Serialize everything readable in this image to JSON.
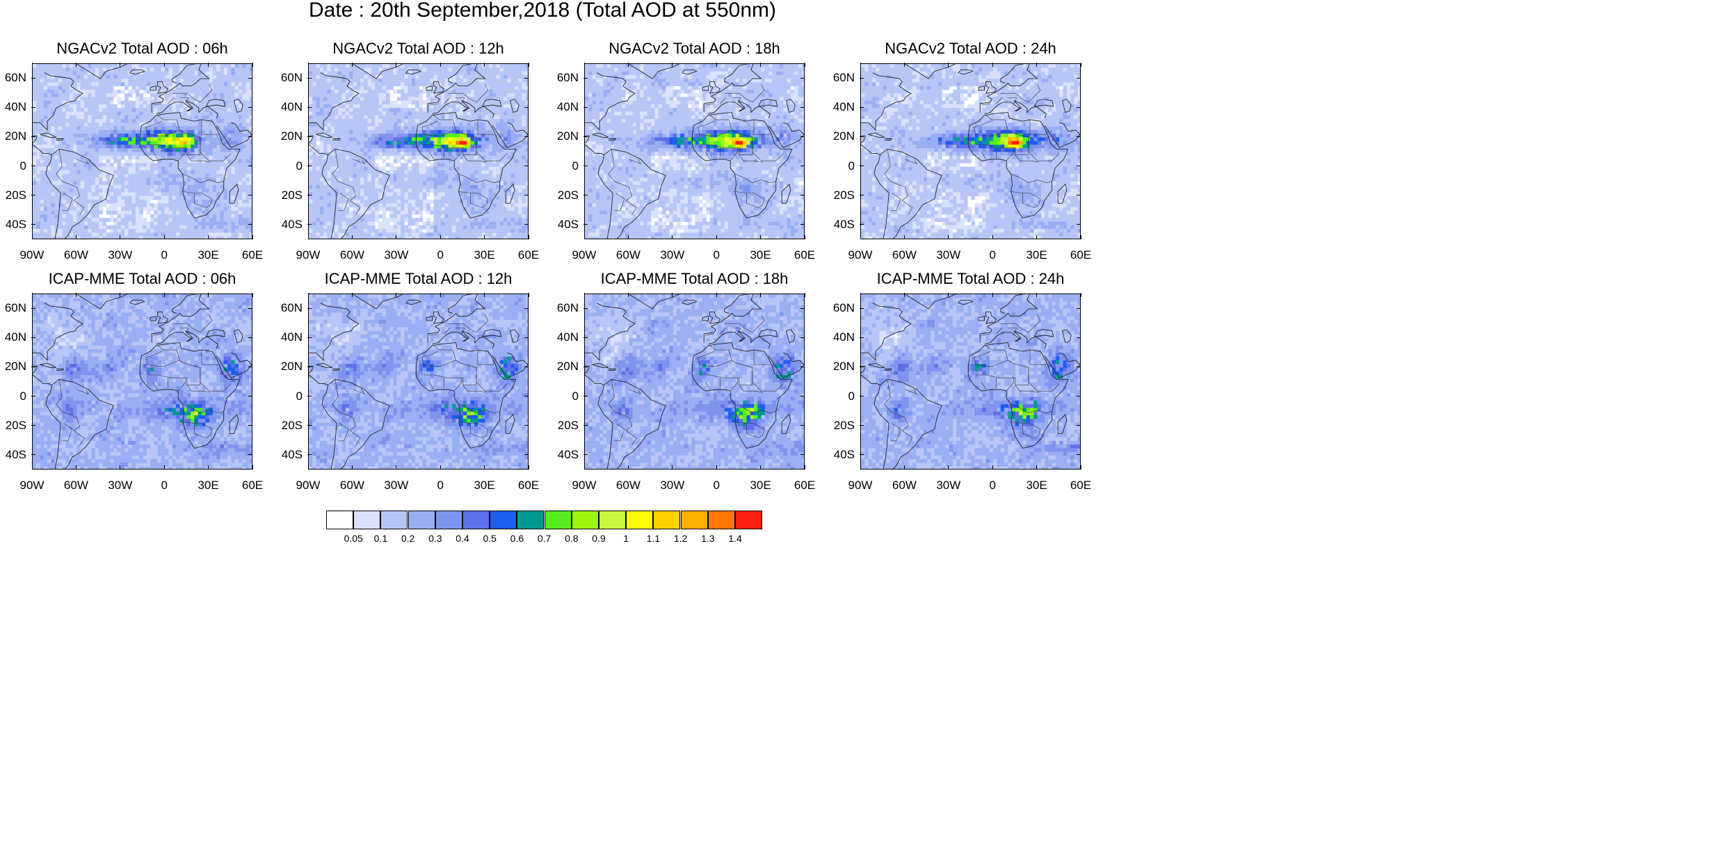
{
  "title": "Date : 20th September,2018 (Total AOD at 550nm)",
  "panels": [
    {
      "title": "NGACv2 Total AOD : 06h",
      "model": "ngac",
      "phase": 0
    },
    {
      "title": "NGACv2 Total AOD : 12h",
      "model": "ngac",
      "phase": 1
    },
    {
      "title": "NGACv2 Total AOD : 18h",
      "model": "ngac",
      "phase": 2
    },
    {
      "title": "NGACv2 Total AOD : 24h",
      "model": "ngac",
      "phase": 3
    },
    {
      "title": "ICAP-MME Total AOD : 06h",
      "model": "icap",
      "phase": 0
    },
    {
      "title": "ICAP-MME Total AOD : 12h",
      "model": "icap",
      "phase": 1
    },
    {
      "title": "ICAP-MME Total AOD : 18h",
      "model": "icap",
      "phase": 2
    },
    {
      "title": "ICAP-MME Total AOD : 24h",
      "model": "icap",
      "phase": 3
    }
  ],
  "lat_labels": [
    "60N",
    "40N",
    "20N",
    "0",
    "20S",
    "40S"
  ],
  "lon_labels": [
    "90W",
    "60W",
    "30W",
    "0",
    "30E",
    "60E"
  ],
  "colorbar": {
    "labels": [
      "0.05",
      "0.1",
      "0.2",
      "0.3",
      "0.4",
      "0.5",
      "0.6",
      "0.7",
      "0.8",
      "0.9",
      "1",
      "1.1",
      "1.2",
      "1.3",
      "1.4"
    ],
    "colors": [
      "#ffffff",
      "#d9e1fb",
      "#b8c6f7",
      "#9aaef4",
      "#7f94ee",
      "#5f71e8",
      "#1f5cf0",
      "#009a93",
      "#55ef20",
      "#9bf50c",
      "#c8f73c",
      "#ffff00",
      "#ffd000",
      "#ffb000",
      "#ff7700",
      "#ff2010"
    ]
  }
}
